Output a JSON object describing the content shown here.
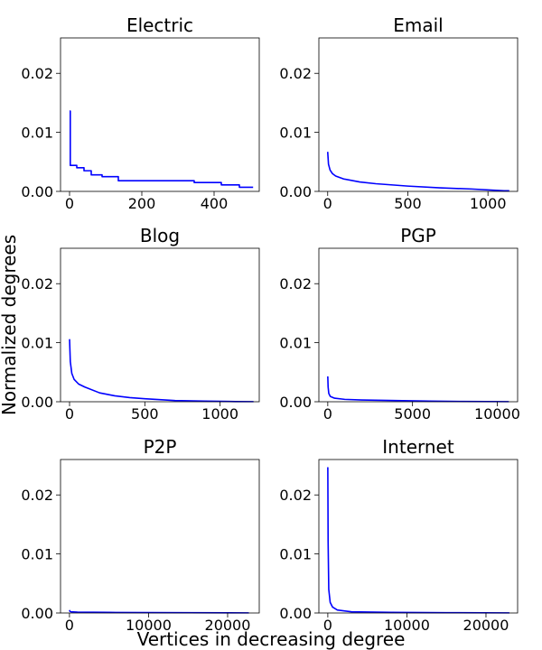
{
  "figure": {
    "ylabel": "Normalized degrees",
    "xlabel": "Vertices in decreasing degree",
    "line_color": "#0000ff"
  },
  "chart_data": [
    {
      "type": "line",
      "title": "Electric",
      "xlim": [
        -25,
        525
      ],
      "ylim": [
        0,
        0.026
      ],
      "xticks": [
        0,
        200,
        400
      ],
      "xtick_labels": [
        "0",
        "200",
        "400"
      ],
      "yticks": [
        0,
        0.01,
        0.02
      ],
      "ytick_labels": [
        "0.00",
        "0.01",
        "0.02"
      ],
      "series": [
        {
          "step": true,
          "x": [
            0,
            2,
            20,
            40,
            60,
            90,
            135,
            345,
            420,
            470,
            508
          ],
          "y": [
            0.0136,
            0.0044,
            0.004,
            0.0035,
            0.0028,
            0.0025,
            0.0018,
            0.0015,
            0.0011,
            0.0007,
            0.0007
          ]
        }
      ]
    },
    {
      "type": "line",
      "title": "Email",
      "xlim": [
        -55,
        1185
      ],
      "ylim": [
        0,
        0.026
      ],
      "xticks": [
        0,
        500,
        1000
      ],
      "xtick_labels": [
        "0",
        "500",
        "1000"
      ],
      "yticks": [
        0,
        0.01,
        0.02
      ],
      "ytick_labels": [
        "0.00",
        "0.01",
        "0.02"
      ],
      "series": [
        {
          "x": [
            0,
            5,
            15,
            30,
            50,
            100,
            200,
            300,
            500,
            700,
            900,
            1100,
            1133
          ],
          "y": [
            0.0067,
            0.0046,
            0.0036,
            0.003,
            0.0026,
            0.0021,
            0.0016,
            0.0013,
            0.0009,
            0.0006,
            0.0004,
            0.0001,
            0.0001
          ]
        }
      ]
    },
    {
      "type": "line",
      "title": "Blog",
      "xlim": [
        -60,
        1260
      ],
      "ylim": [
        0,
        0.026
      ],
      "xticks": [
        0,
        500,
        1000
      ],
      "xtick_labels": [
        "0",
        "500",
        "1000"
      ],
      "yticks": [
        0,
        0.01,
        0.02
      ],
      "ytick_labels": [
        "0.00",
        "0.01",
        "0.02"
      ],
      "series": [
        {
          "x": [
            0,
            5,
            15,
            30,
            60,
            100,
            200,
            300,
            400,
            500,
            700,
            900,
            1100,
            1222
          ],
          "y": [
            0.0106,
            0.0068,
            0.0048,
            0.0038,
            0.003,
            0.0025,
            0.0015,
            0.001,
            0.0007,
            0.0005,
            0.0002,
            0.0001,
            3e-05,
            2e-05
          ]
        }
      ]
    },
    {
      "type": "line",
      "title": "PGP",
      "xlim": [
        -525,
        11200
      ],
      "ylim": [
        0,
        0.026
      ],
      "xticks": [
        0,
        5000,
        10000
      ],
      "xtick_labels": [
        "0",
        "5000",
        "10000"
      ],
      "yticks": [
        0,
        0.01,
        0.02
      ],
      "ytick_labels": [
        "0.00",
        "0.01",
        "0.02"
      ],
      "series": [
        {
          "x": [
            0,
            20,
            60,
            150,
            400,
            1000,
            2000,
            4000,
            6000,
            8000,
            10680
          ],
          "y": [
            0.0043,
            0.0025,
            0.0014,
            0.0009,
            0.0006,
            0.0004,
            0.0003,
            0.0002,
            0.0001,
            5e-05,
            2e-05
          ]
        }
      ]
    },
    {
      "type": "line",
      "title": "P2P",
      "xlim": [
        -1130,
        24000
      ],
      "ylim": [
        0,
        0.026
      ],
      "xticks": [
        0,
        10000,
        20000
      ],
      "xtick_labels": [
        "0",
        "10000",
        "20000"
      ],
      "yticks": [
        0,
        0.01,
        0.02
      ],
      "ytick_labels": [
        "0.00",
        "0.01",
        "0.02"
      ],
      "series": [
        {
          "x": [
            0,
            50,
            200,
            1000,
            5000,
            15000,
            22687
          ],
          "y": [
            0.0005,
            0.0003,
            0.0002,
            0.00015,
            0.0001,
            5e-05,
            2e-05
          ]
        }
      ]
    },
    {
      "type": "line",
      "title": "Internet",
      "xlim": [
        -1130,
        24000
      ],
      "ylim": [
        0,
        0.026
      ],
      "xticks": [
        0,
        10000,
        20000
      ],
      "xtick_labels": [
        "0",
        "10000",
        "20000"
      ],
      "yticks": [
        0,
        0.01,
        0.02
      ],
      "ytick_labels": [
        "0.00",
        "0.01",
        "0.02"
      ],
      "series": [
        {
          "x": [
            0,
            40,
            120,
            300,
            600,
            1200,
            3000,
            8000,
            15000,
            22963
          ],
          "y": [
            0.0247,
            0.012,
            0.004,
            0.0018,
            0.001,
            0.0005,
            0.0002,
            0.0001,
            5e-05,
            2e-05
          ]
        }
      ]
    }
  ]
}
